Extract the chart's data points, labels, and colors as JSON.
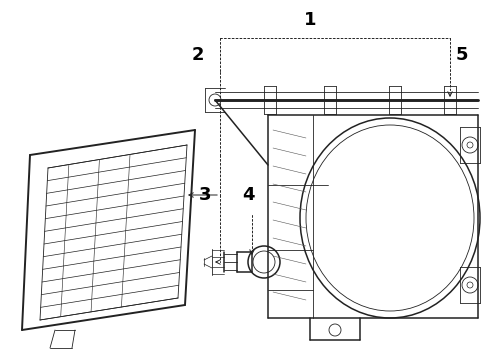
{
  "background_color": "#ffffff",
  "line_color": "#222222",
  "label_color": "#000000",
  "label_fontsize": 13,
  "label_fontweight": "bold",
  "fig_width": 4.9,
  "fig_height": 3.6,
  "dpi": 100,
  "callout_lw": 0.7,
  "part_lw": 1.1,
  "thin_lw": 0.6
}
